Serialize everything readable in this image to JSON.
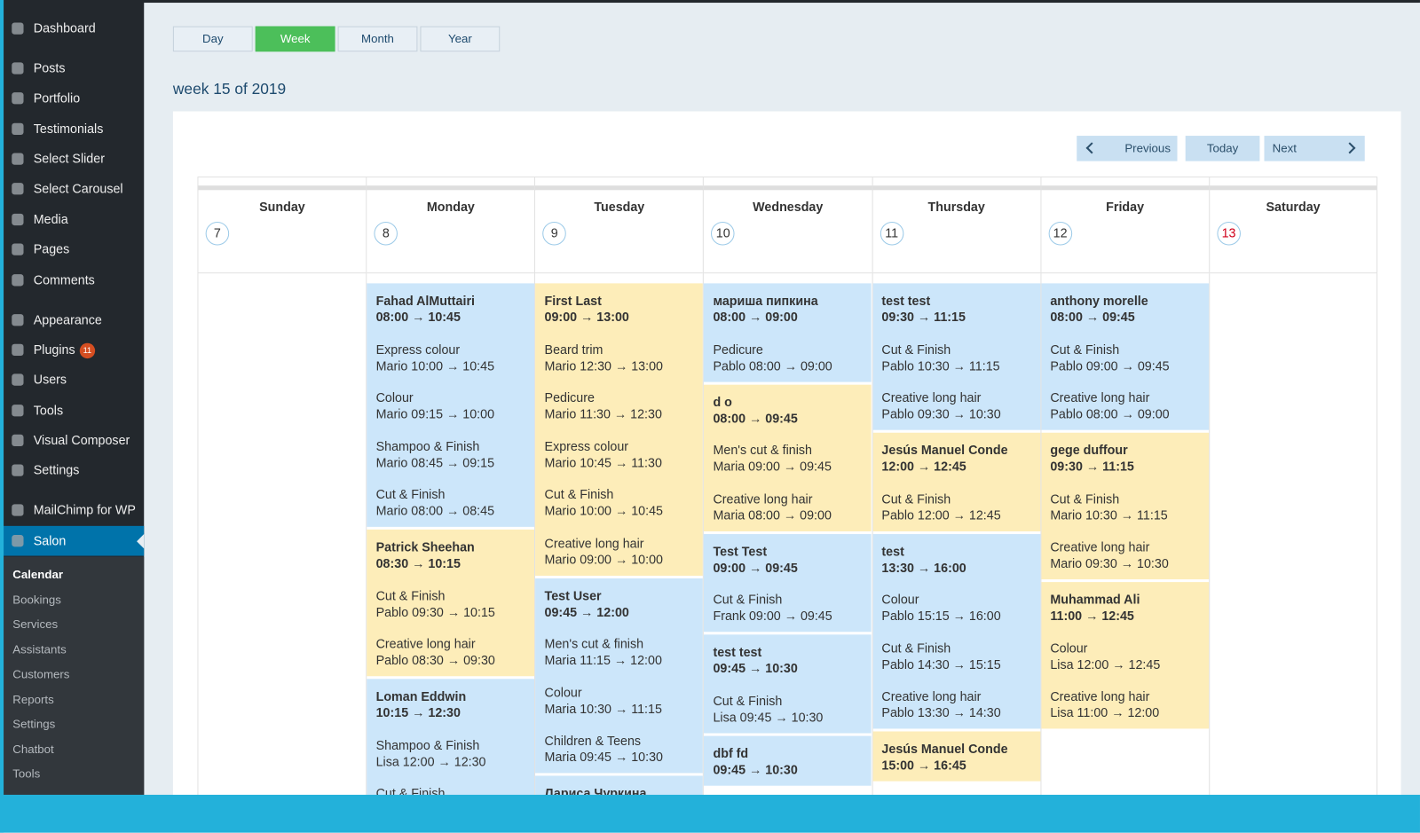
{
  "sidebar": {
    "menu": [
      [
        {
          "label": "Dashboard"
        }
      ],
      [
        {
          "label": "Posts"
        },
        {
          "label": "Portfolio"
        },
        {
          "label": "Testimonials"
        },
        {
          "label": "Select Slider"
        },
        {
          "label": "Select Carousel"
        },
        {
          "label": "Media"
        },
        {
          "label": "Pages"
        },
        {
          "label": "Comments"
        }
      ],
      [
        {
          "label": "Appearance"
        },
        {
          "label": "Plugins",
          "badge": 11
        },
        {
          "label": "Users"
        },
        {
          "label": "Tools"
        },
        {
          "label": "Visual Composer"
        },
        {
          "label": "Settings"
        }
      ],
      [
        {
          "label": "MailChimp for WP"
        },
        {
          "label": "Salon"
        }
      ]
    ],
    "submenu": [
      "Calendar",
      "Bookings",
      "Services",
      "Assistants",
      "Customers",
      "Reports",
      "Settings",
      "Chatbot",
      "Tools"
    ]
  },
  "views": [
    "Day",
    "Week",
    "Month",
    "Year"
  ],
  "week_title": "week 15 of 2019",
  "nav": {
    "previous": "Previous",
    "today": "Today",
    "next": "Next"
  },
  "days": [
    {
      "name": "Sunday",
      "date": 7,
      "bookings": []
    },
    {
      "name": "Monday",
      "date": 8,
      "bookings": [
        {
          "name": "Fahad AlMuttairi",
          "time": "08:00 → 10:45",
          "color": "#cce6fa",
          "services": [
            {
              "name": "Express colour",
              "detail": "Mario 10:00 → 10:45"
            },
            {
              "name": "Colour",
              "detail": "Mario 09:15 → 10:00"
            },
            {
              "name": "Shampoo & Finish",
              "detail": "Mario 08:45 → 09:15"
            },
            {
              "name": "Cut & Finish",
              "detail": "Mario 08:00 → 08:45"
            }
          ]
        },
        {
          "name": "Patrick Sheehan",
          "time": "08:30 → 10:15",
          "color": "#fdedb9",
          "services": [
            {
              "name": "Cut & Finish",
              "detail": "Pablo 09:30 → 10:15"
            },
            {
              "name": "Creative long hair",
              "detail": "Pablo 08:30 → 09:30"
            }
          ]
        },
        {
          "name": "Loman Eddwin",
          "time": "10:15 → 12:30",
          "color": "#cce6fa",
          "services": [
            {
              "name": "Shampoo & Finish",
              "detail": "Lisa 12:00 → 12:30"
            },
            {
              "name": "Cut & Finish"
            }
          ]
        }
      ]
    },
    {
      "name": "Tuesday",
      "date": 9,
      "bookings": [
        {
          "name": "First Last",
          "time": "09:00 → 13:00",
          "color": "#fdedb9",
          "services": [
            {
              "name": "Beard trim",
              "detail": "Mario 12:30 → 13:00"
            },
            {
              "name": "Pedicure",
              "detail": "Mario 11:30 → 12:30"
            },
            {
              "name": "Express colour",
              "detail": "Mario 10:45 → 11:30"
            },
            {
              "name": "Cut & Finish",
              "detail": "Mario 10:00 → 10:45"
            },
            {
              "name": "Creative long hair",
              "detail": "Mario 09:00 → 10:00"
            }
          ]
        },
        {
          "name": "Test User",
          "time": "09:45 → 12:00",
          "color": "#cce6fa",
          "services": [
            {
              "name": "Men's cut & finish",
              "detail": "Maria 11:15 → 12:00"
            },
            {
              "name": "Colour",
              "detail": "Maria 10:30 → 11:15"
            },
            {
              "name": "Children & Teens",
              "detail": "Maria 09:45 → 10:30"
            }
          ]
        },
        {
          "name": "Лариса Чуркина",
          "color": "#cce6fa",
          "services": []
        }
      ]
    },
    {
      "name": "Wednesday",
      "date": 10,
      "bookings": [
        {
          "name": "мариша пипкина",
          "time": "08:00 → 09:00",
          "color": "#cce6fa",
          "services": [
            {
              "name": "Pedicure",
              "detail": "Pablo 08:00 → 09:00"
            }
          ]
        },
        {
          "name": "d o",
          "time": "08:00 → 09:45",
          "color": "#fdedb9",
          "services": [
            {
              "name": "Men's cut & finish",
              "detail": "Maria 09:00 → 09:45"
            },
            {
              "name": "Creative long hair",
              "detail": "Maria 08:00 → 09:00"
            }
          ]
        },
        {
          "name": "Test Test",
          "time": "09:00 → 09:45",
          "color": "#cce6fa",
          "services": [
            {
              "name": "Cut & Finish",
              "detail": "Frank 09:00 → 09:45"
            }
          ]
        },
        {
          "name": "test test",
          "time": "09:45 → 10:30",
          "color": "#cce6fa",
          "services": [
            {
              "name": "Cut & Finish",
              "detail": "Lisa 09:45 → 10:30"
            }
          ]
        },
        {
          "name": "dbf fd",
          "time": "09:45 → 10:30",
          "color": "#cce6fa",
          "services": []
        }
      ]
    },
    {
      "name": "Thursday",
      "date": 11,
      "bookings": [
        {
          "name": "test test",
          "time": "09:30 → 11:15",
          "color": "#cce6fa",
          "services": [
            {
              "name": "Cut & Finish",
              "detail": "Pablo 10:30 → 11:15"
            },
            {
              "name": "Creative long hair",
              "detail": "Pablo 09:30 → 10:30"
            }
          ]
        },
        {
          "name": "Jesús Manuel Conde",
          "time": "12:00 → 12:45",
          "color": "#fdedb9",
          "services": [
            {
              "name": "Cut & Finish",
              "detail": "Pablo 12:00 → 12:45"
            }
          ]
        },
        {
          "name": "test",
          "time": "13:30 → 16:00",
          "color": "#cce6fa",
          "services": [
            {
              "name": "Colour",
              "detail": "Pablo 15:15 → 16:00"
            },
            {
              "name": "Cut & Finish",
              "detail": "Pablo 14:30 → 15:15"
            },
            {
              "name": "Creative long hair",
              "detail": "Pablo 13:30 → 14:30"
            }
          ]
        },
        {
          "name": "Jesús Manuel Conde",
          "time": "15:00 → 16:45",
          "color": "#fdedb9",
          "services": []
        }
      ]
    },
    {
      "name": "Friday",
      "date": 12,
      "bookings": [
        {
          "name": "anthony morelle",
          "time": "08:00 → 09:45",
          "color": "#cce6fa",
          "services": [
            {
              "name": "Cut & Finish",
              "detail": "Pablo 09:00 → 09:45"
            },
            {
              "name": "Creative long hair",
              "detail": "Pablo 08:00 → 09:00"
            }
          ]
        },
        {
          "name": "gege duffour",
          "time": "09:30 → 11:15",
          "color": "#fdedb9",
          "services": [
            {
              "name": "Cut & Finish",
              "detail": "Mario 10:30 → 11:15"
            },
            {
              "name": "Creative long hair",
              "detail": "Mario 09:30 → 10:30"
            }
          ]
        },
        {
          "name": "Muhammad Ali",
          "time": "11:00 → 12:45",
          "color": "#fdedb9",
          "services": [
            {
              "name": "Colour",
              "detail": "Lisa 12:00 → 12:45"
            },
            {
              "name": "Creative long hair",
              "detail": "Lisa 11:00 → 12:00"
            }
          ]
        }
      ]
    },
    {
      "name": "Saturday",
      "date": 13,
      "bookings": []
    }
  ]
}
